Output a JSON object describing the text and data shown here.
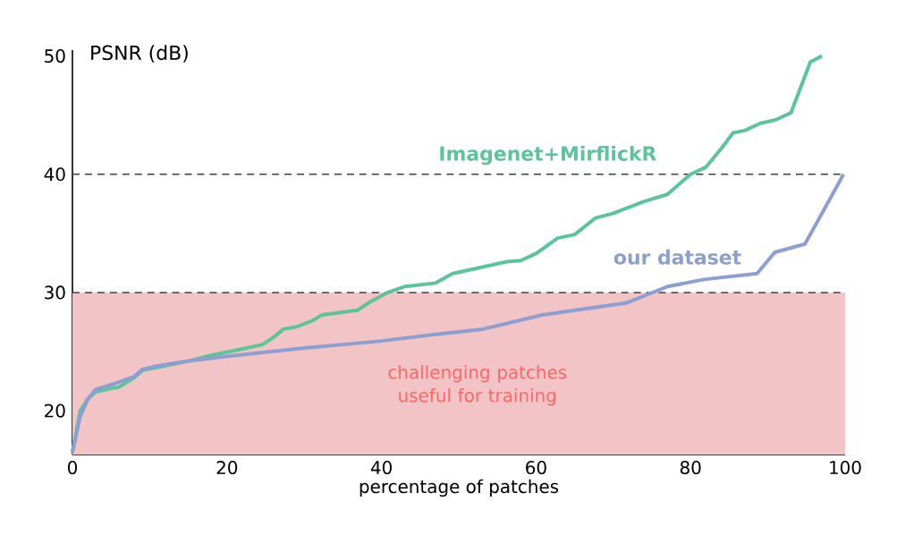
{
  "chart_data": {
    "type": "line",
    "xlabel": "percentage of patches",
    "ylabel": "PSNR (dB)",
    "xlim": [
      0,
      100
    ],
    "ylim": [
      16.3,
      50.5
    ],
    "xticks": [
      0,
      20,
      40,
      60,
      80,
      100
    ],
    "yticks": [
      20,
      30,
      40,
      50
    ],
    "grid": false,
    "marker": "none",
    "line_style": "solid",
    "series": [
      {
        "name": "Imagenet+MirflickR",
        "color": "#5cc49a",
        "x": [
          0,
          1,
          2,
          3,
          5,
          6,
          8,
          9,
          12,
          15,
          18,
          21,
          24.6,
          26,
          27.3,
          29,
          31,
          32.3,
          36.9,
          38.5,
          40.8,
          43,
          47,
          49.2,
          52,
          56.2,
          58,
          60,
          62.8,
          65,
          67.7,
          70,
          74,
          77,
          80,
          82,
          84,
          85.5,
          87,
          89,
          91,
          93,
          95.5,
          97
        ],
        "values": [
          16.5,
          20,
          21,
          21.6,
          21.9,
          22,
          22.8,
          23.4,
          23.8,
          24.2,
          24.7,
          25.1,
          25.6,
          26.2,
          26.9,
          27.1,
          27.6,
          28.1,
          28.5,
          29.2,
          30,
          30.5,
          30.8,
          31.6,
          32,
          32.6,
          32.7,
          33.3,
          34.6,
          34.9,
          36.3,
          36.7,
          37.7,
          38.3,
          40,
          40.6,
          42.2,
          43.5,
          43.7,
          44.3,
          44.6,
          45.2,
          49.5,
          50
        ]
      },
      {
        "name": "our dataset",
        "color": "#8c9fd0",
        "x": [
          0,
          1,
          2,
          3,
          5,
          8,
          9,
          11,
          15,
          20,
          30,
          40,
          46.2,
          53.1,
          60.8,
          69.3,
          71.6,
          74.7,
          77,
          81.7,
          88.6,
          90.9,
          94.8,
          97.1,
          99.8
        ],
        "values": [
          16.5,
          19.5,
          21,
          21.8,
          22.2,
          22.9,
          23.5,
          23.8,
          24.2,
          24.6,
          25.3,
          25.9,
          26.4,
          26.9,
          28.1,
          28.9,
          29.1,
          29.9,
          30.5,
          31.1,
          31.6,
          33.4,
          34.1,
          36.8,
          40
        ]
      }
    ],
    "ref_lines": [
      {
        "axis": "y",
        "value": 30,
        "color": "#404040",
        "line_style": "dashed"
      },
      {
        "axis": "y",
        "value": 40,
        "color": "#404040",
        "line_style": "dashed"
      }
    ],
    "bands": [
      {
        "axis": "y",
        "from": 16.3,
        "to": 30,
        "label": "challenging patches useful for training",
        "color": "#f2c4c6"
      }
    ]
  }
}
